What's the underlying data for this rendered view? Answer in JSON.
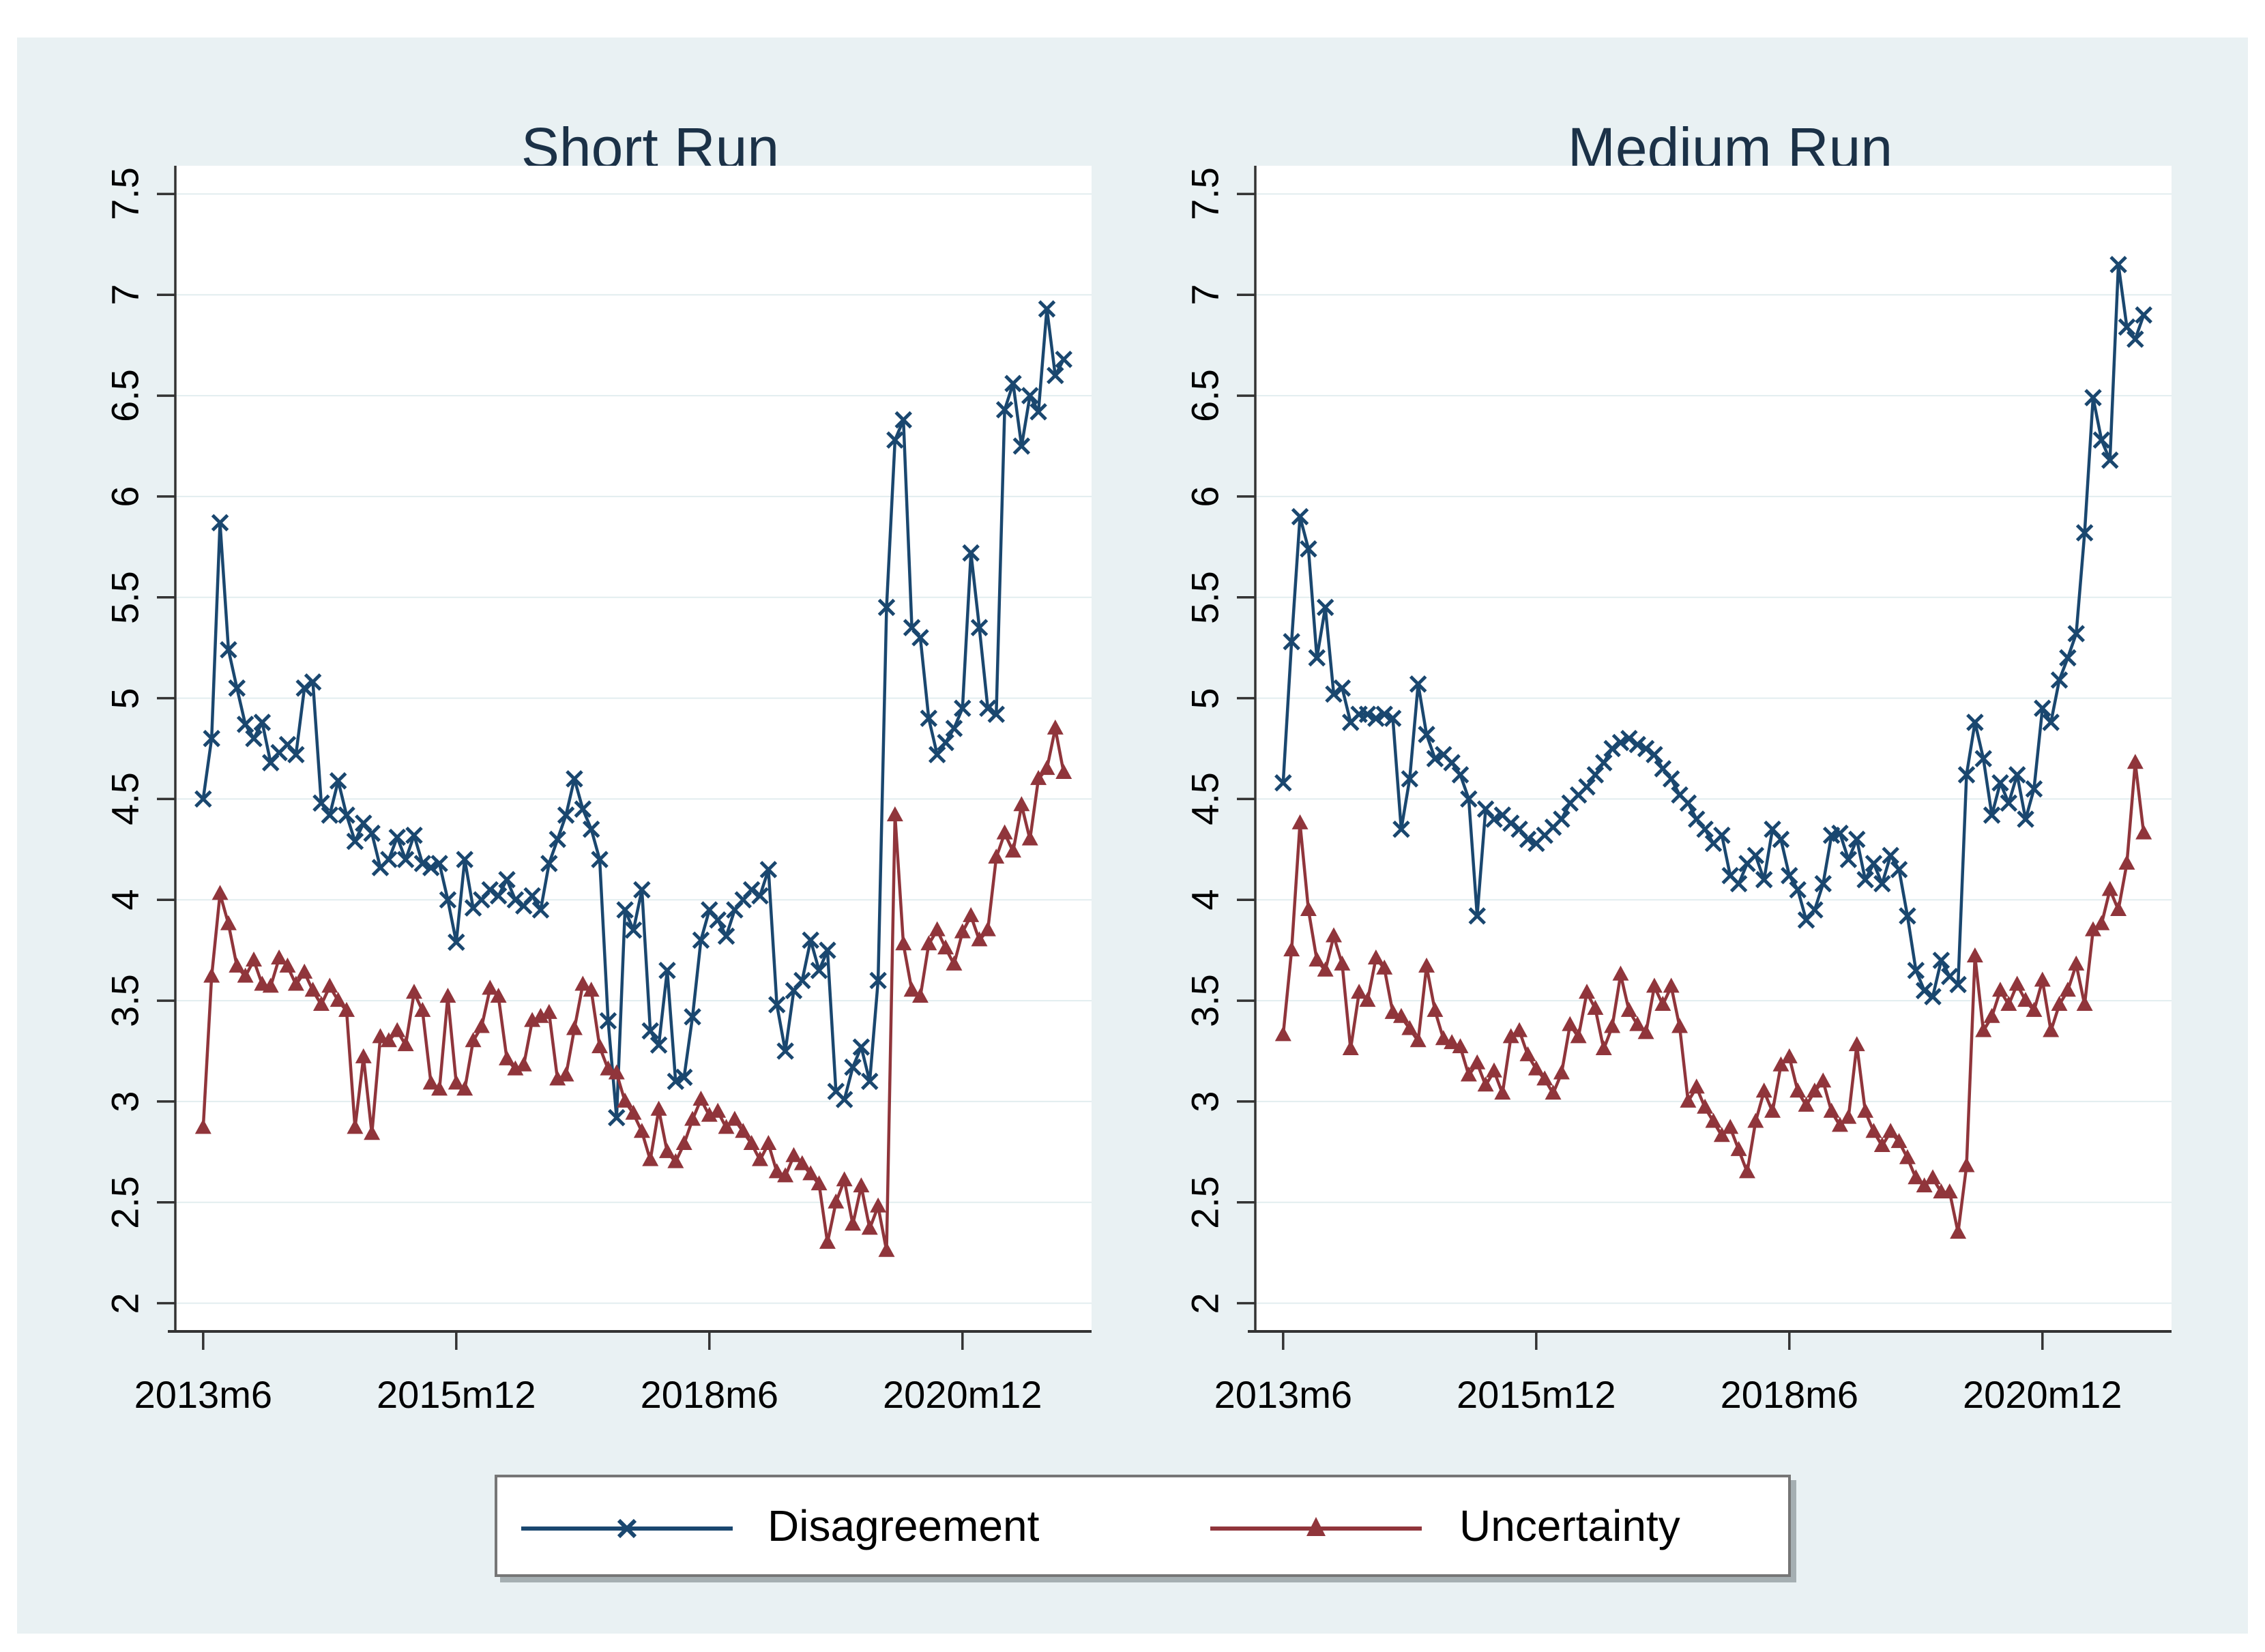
{
  "figure": {
    "page_background": "#ffffff",
    "canvas_background": "#e9f1f3",
    "plot_background": "#ffffff",
    "grid_color": "#e2edef",
    "axis_color": "#333333",
    "title_color": "#1b3147"
  },
  "legend": {
    "items": [
      {
        "label": "Disagreement",
        "color": "#1a476f",
        "marker": "x"
      },
      {
        "label": "Uncertainty",
        "color": "#90353b",
        "marker": "triangle"
      }
    ]
  },
  "chart_data": [
    {
      "type": "line",
      "title": "Short Run",
      "x_start": "2013m6",
      "frequency": "monthly",
      "n_points": 103,
      "ylim": [
        2,
        7.5
      ],
      "y_ticks": [
        "2",
        "2.5",
        "3",
        "3.5",
        "4",
        "4.5",
        "5",
        "5.5",
        "6",
        "6.5",
        "7",
        "7.5"
      ],
      "y_tick_values": [
        2,
        2.5,
        3,
        3.5,
        4,
        4.5,
        5,
        5.5,
        6,
        6.5,
        7,
        7.5
      ],
      "x_ticks": [
        {
          "index": 0,
          "label": "2013m6"
        },
        {
          "index": 30,
          "label": "2015m12"
        },
        {
          "index": 60,
          "label": "2018m6"
        },
        {
          "index": 90,
          "label": "2020m12"
        }
      ],
      "series": [
        {
          "name": "Disagreement",
          "color": "#1a476f",
          "marker": "x",
          "values": [
            4.5,
            4.8,
            5.87,
            5.24,
            5.05,
            4.87,
            4.8,
            4.88,
            4.68,
            4.73,
            4.77,
            4.72,
            5.05,
            5.08,
            4.48,
            4.42,
            4.59,
            4.42,
            4.29,
            4.38,
            4.33,
            4.16,
            4.2,
            4.31,
            4.2,
            4.32,
            4.18,
            4.16,
            4.18,
            4.0,
            3.79,
            4.2,
            3.96,
            4.0,
            4.05,
            4.02,
            4.1,
            4.0,
            3.97,
            4.02,
            3.95,
            4.18,
            4.3,
            4.42,
            4.6,
            4.45,
            4.35,
            4.2,
            3.4,
            2.92,
            3.95,
            3.85,
            4.05,
            3.35,
            3.28,
            3.65,
            3.1,
            3.12,
            3.42,
            3.8,
            3.95,
            3.9,
            3.82,
            3.95,
            4.0,
            4.05,
            4.02,
            4.15,
            3.48,
            3.25,
            3.55,
            3.6,
            3.8,
            3.65,
            3.75,
            3.05,
            3.01,
            3.17,
            3.27,
            3.1,
            3.6,
            5.45,
            6.28,
            6.38,
            5.35,
            5.3,
            4.9,
            4.72,
            4.78,
            4.85,
            4.95,
            5.72,
            5.35,
            4.95,
            4.92,
            6.43,
            6.56,
            6.25,
            6.5,
            6.42,
            6.93,
            6.6,
            6.68
          ]
        },
        {
          "name": "Uncertainty",
          "color": "#90353b",
          "marker": "triangle",
          "values": [
            2.87,
            3.62,
            4.03,
            3.88,
            3.67,
            3.62,
            3.7,
            3.58,
            3.57,
            3.71,
            3.67,
            3.58,
            3.64,
            3.55,
            3.48,
            3.57,
            3.5,
            3.45,
            2.87,
            3.22,
            2.84,
            3.32,
            3.3,
            3.35,
            3.28,
            3.54,
            3.45,
            3.09,
            3.06,
            3.52,
            3.09,
            3.06,
            3.3,
            3.37,
            3.56,
            3.52,
            3.21,
            3.16,
            3.18,
            3.4,
            3.42,
            3.44,
            3.11,
            3.13,
            3.36,
            3.58,
            3.55,
            3.27,
            3.16,
            3.14,
            3.0,
            2.94,
            2.85,
            2.71,
            2.96,
            2.75,
            2.7,
            2.79,
            2.91,
            3.01,
            2.93,
            2.95,
            2.87,
            2.91,
            2.85,
            2.79,
            2.71,
            2.79,
            2.65,
            2.63,
            2.73,
            2.69,
            2.64,
            2.59,
            2.3,
            2.5,
            2.61,
            2.39,
            2.58,
            2.37,
            2.48,
            2.26,
            4.42,
            3.78,
            3.55,
            3.52,
            3.78,
            3.85,
            3.76,
            3.68,
            3.84,
            3.92,
            3.8,
            3.85,
            4.21,
            4.33,
            4.24,
            4.47,
            4.3,
            4.6,
            4.65,
            4.85,
            4.63
          ]
        }
      ]
    },
    {
      "type": "line",
      "title": "Medium Run",
      "x_start": "2013m6",
      "frequency": "monthly",
      "n_points": 103,
      "ylim": [
        2,
        7.5
      ],
      "y_ticks": [
        "2",
        "2.5",
        "3",
        "3.5",
        "4",
        "4.5",
        "5",
        "5.5",
        "6",
        "6.5",
        "7",
        "7.5"
      ],
      "y_tick_values": [
        2,
        2.5,
        3,
        3.5,
        4,
        4.5,
        5,
        5.5,
        6,
        6.5,
        7,
        7.5
      ],
      "x_ticks": [
        {
          "index": 0,
          "label": "2013m6"
        },
        {
          "index": 30,
          "label": "2015m12"
        },
        {
          "index": 60,
          "label": "2018m6"
        },
        {
          "index": 90,
          "label": "2020m12"
        }
      ],
      "series": [
        {
          "name": "Disagreement",
          "color": "#1a476f",
          "marker": "x",
          "values": [
            4.58,
            5.28,
            5.9,
            5.74,
            5.2,
            5.45,
            5.02,
            5.05,
            4.88,
            4.92,
            4.92,
            4.9,
            4.92,
            4.9,
            4.35,
            4.6,
            5.07,
            4.82,
            4.7,
            4.72,
            4.68,
            4.62,
            4.5,
            3.92,
            4.45,
            4.4,
            4.42,
            4.38,
            4.35,
            4.3,
            4.28,
            4.32,
            4.36,
            4.4,
            4.48,
            4.52,
            4.56,
            4.62,
            4.68,
            4.75,
            4.78,
            4.8,
            4.77,
            4.75,
            4.72,
            4.65,
            4.6,
            4.52,
            4.48,
            4.4,
            4.35,
            4.28,
            4.32,
            4.12,
            4.08,
            4.18,
            4.22,
            4.1,
            4.35,
            4.3,
            4.12,
            4.05,
            3.9,
            3.95,
            4.08,
            4.32,
            4.33,
            4.2,
            4.3,
            4.1,
            4.18,
            4.08,
            4.22,
            4.15,
            3.92,
            3.65,
            3.55,
            3.52,
            3.7,
            3.62,
            3.58,
            4.62,
            4.88,
            4.7,
            4.42,
            4.58,
            4.48,
            4.62,
            4.4,
            4.55,
            4.95,
            4.88,
            5.09,
            5.2,
            5.32,
            5.82,
            6.49,
            6.28,
            6.18,
            7.15,
            6.84,
            6.78,
            6.9
          ]
        },
        {
          "name": "Uncertainty",
          "color": "#90353b",
          "marker": "triangle",
          "values": [
            3.33,
            3.75,
            4.38,
            3.95,
            3.7,
            3.65,
            3.82,
            3.68,
            3.26,
            3.54,
            3.5,
            3.71,
            3.66,
            3.44,
            3.42,
            3.36,
            3.3,
            3.67,
            3.45,
            3.31,
            3.29,
            3.27,
            3.13,
            3.19,
            3.08,
            3.15,
            3.04,
            3.32,
            3.35,
            3.23,
            3.16,
            3.11,
            3.04,
            3.14,
            3.38,
            3.32,
            3.54,
            3.46,
            3.26,
            3.37,
            3.63,
            3.45,
            3.38,
            3.34,
            3.57,
            3.48,
            3.57,
            3.37,
            3.0,
            3.07,
            2.97,
            2.9,
            2.83,
            2.87,
            2.76,
            2.65,
            2.9,
            3.05,
            2.95,
            3.18,
            3.22,
            3.05,
            2.98,
            3.05,
            3.1,
            2.95,
            2.88,
            2.92,
            3.28,
            2.95,
            2.85,
            2.78,
            2.85,
            2.8,
            2.72,
            2.62,
            2.58,
            2.62,
            2.55,
            2.55,
            2.35,
            2.68,
            3.72,
            3.35,
            3.42,
            3.55,
            3.48,
            3.58,
            3.5,
            3.45,
            3.6,
            3.35,
            3.48,
            3.55,
            3.68,
            3.48,
            3.85,
            3.88,
            4.05,
            3.95,
            4.18,
            4.68,
            4.33
          ]
        }
      ]
    }
  ]
}
